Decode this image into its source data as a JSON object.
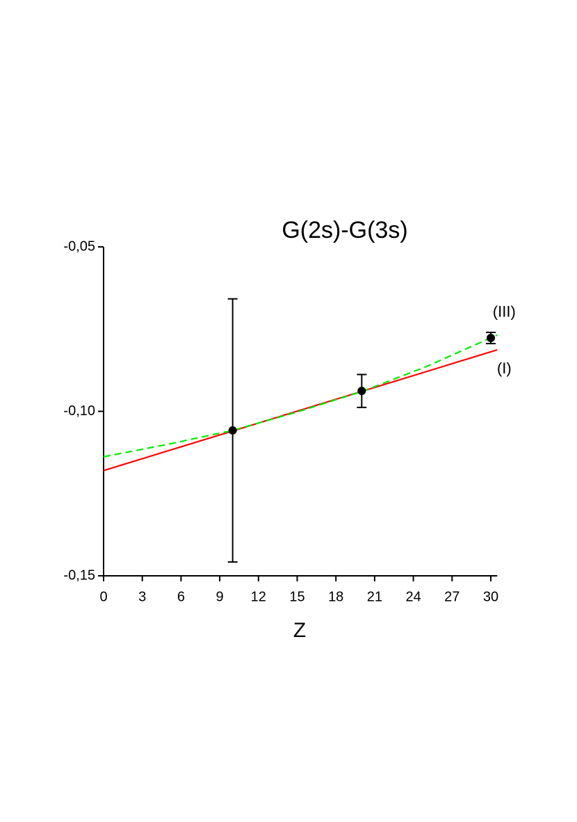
{
  "chart_data": {
    "type": "line",
    "title": "G(2s)-G(3s)",
    "x_label": "Z",
    "xlim": [
      0,
      30.5
    ],
    "xticks": [
      0,
      3,
      6,
      9,
      12,
      15,
      18,
      21,
      24,
      27,
      30
    ],
    "ylim": [
      -0.15,
      -0.05
    ],
    "yticks": [
      {
        "value": -0.15,
        "label": "-0,15"
      },
      {
        "value": -0.1,
        "label": "-0,10"
      },
      {
        "value": -0.05,
        "label": "-0,05"
      }
    ],
    "series": [
      {
        "name": "(I)",
        "type": "line",
        "color": "#ff0000",
        "dashed": false,
        "x": [
          0,
          30.5
        ],
        "values": [
          -0.118,
          -0.0813
        ]
      },
      {
        "name": "(III)",
        "type": "line",
        "color": "#00ee00",
        "dashed": true,
        "x": [
          0,
          5,
          10,
          15,
          20,
          25,
          30.5
        ],
        "values": [
          -0.1138,
          -0.11,
          -0.1058,
          -0.1002,
          -0.094,
          -0.0864,
          -0.0768
        ]
      },
      {
        "type": "scatter",
        "color": "#000000",
        "x": [
          10,
          20,
          30
        ],
        "values": [
          -0.1058,
          -0.0938,
          -0.0777
        ],
        "errors": [
          0.04,
          0.005,
          0.0017
        ]
      }
    ]
  }
}
